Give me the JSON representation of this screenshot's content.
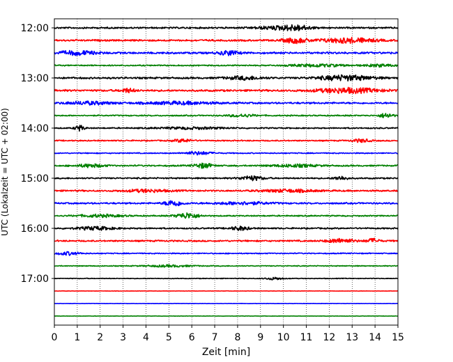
{
  "chart_data": {
    "type": "line",
    "xlabel": "Zeit  [min]",
    "ylabel": "UTC (Lokalzeit = UTC + 02:00)",
    "xlim": [
      0,
      15
    ],
    "x_ticks": [
      "0",
      "1",
      "2",
      "3",
      "4",
      "5",
      "6",
      "7",
      "8",
      "9",
      "10",
      "11",
      "12",
      "13",
      "14",
      "15"
    ],
    "y_ticks": [
      "12:00",
      "13:00",
      "14:00",
      "15:00",
      "16:00",
      "17:00"
    ],
    "grid": "vertical dotted lines at each minute",
    "trace_interval_min": 15,
    "color_cycle": [
      "#000000",
      "#ff0000",
      "#0000ff",
      "#008000"
    ],
    "traces": [
      {
        "start": "12:00",
        "amp": 0.45,
        "events": [
          [
            9.7,
            0.9,
            1.0
          ],
          [
            10.6,
            1.4,
            0.6
          ]
        ]
      },
      {
        "start": "12:15",
        "amp": 0.5,
        "events": [
          [
            10.5,
            1.6,
            0.5
          ],
          [
            12.8,
            1.5,
            1.2
          ]
        ]
      },
      {
        "start": "12:30",
        "amp": 0.55,
        "events": [
          [
            1.0,
            1.2,
            0.8
          ],
          [
            7.6,
            1.4,
            0.4
          ]
        ]
      },
      {
        "start": "12:45",
        "amp": 0.35,
        "events": [
          [
            11.5,
            0.8,
            1.2
          ],
          [
            14.2,
            0.8,
            0.6
          ]
        ]
      },
      {
        "start": "13:00",
        "amp": 0.5,
        "events": [
          [
            8.3,
            1.0,
            0.8
          ],
          [
            12.7,
            1.6,
            1.2
          ]
        ]
      },
      {
        "start": "13:15",
        "amp": 0.55,
        "events": [
          [
            3.2,
            1.2,
            0.3
          ],
          [
            12.8,
            1.5,
            1.4
          ]
        ]
      },
      {
        "start": "13:30",
        "amp": 0.5,
        "events": [
          [
            1.5,
            0.9,
            1.0
          ],
          [
            5.5,
            0.8,
            1.5
          ]
        ]
      },
      {
        "start": "13:45",
        "amp": 0.35,
        "events": [
          [
            8.2,
            0.8,
            0.6
          ],
          [
            14.5,
            1.5,
            0.3
          ]
        ]
      },
      {
        "start": "14:00",
        "amp": 0.35,
        "events": [
          [
            1.1,
            1.8,
            0.2
          ],
          [
            6.0,
            0.6,
            1.5
          ]
        ]
      },
      {
        "start": "14:15",
        "amp": 0.35,
        "events": [
          [
            5.6,
            1.0,
            0.4
          ],
          [
            13.4,
            1.0,
            0.4
          ]
        ]
      },
      {
        "start": "14:30",
        "amp": 0.3,
        "events": [
          [
            6.3,
            1.0,
            0.6
          ]
        ]
      },
      {
        "start": "14:45",
        "amp": 0.4,
        "events": [
          [
            1.6,
            1.0,
            0.6
          ],
          [
            6.5,
            1.5,
            0.4
          ],
          [
            10.5,
            0.8,
            1.0
          ]
        ]
      },
      {
        "start": "15:00",
        "amp": 0.4,
        "events": [
          [
            8.6,
            1.4,
            0.5
          ],
          [
            12.5,
            1.2,
            0.3
          ]
        ]
      },
      {
        "start": "15:15",
        "amp": 0.45,
        "events": [
          [
            4.0,
            0.8,
            1.0
          ],
          [
            10.2,
            0.8,
            1.2
          ]
        ]
      },
      {
        "start": "15:30",
        "amp": 0.45,
        "events": [
          [
            5.2,
            1.8,
            0.4
          ],
          [
            8.2,
            0.8,
            1.2
          ]
        ]
      },
      {
        "start": "15:45",
        "amp": 0.35,
        "events": [
          [
            2.0,
            0.8,
            1.0
          ],
          [
            5.8,
            1.8,
            0.5
          ]
        ]
      },
      {
        "start": "16:00",
        "amp": 0.4,
        "events": [
          [
            1.8,
            1.0,
            0.8
          ],
          [
            8.1,
            1.2,
            0.4
          ]
        ]
      },
      {
        "start": "16:15",
        "amp": 0.45,
        "events": [
          [
            12.5,
            1.3,
            0.6
          ],
          [
            13.9,
            1.3,
            0.3
          ]
        ]
      },
      {
        "start": "16:30",
        "amp": 0.3,
        "events": [
          [
            0.6,
            1.0,
            0.5
          ]
        ]
      },
      {
        "start": "16:45",
        "amp": 0.25,
        "events": [
          [
            5.0,
            0.6,
            1.0
          ]
        ]
      },
      {
        "start": "17:00",
        "amp": 0.2,
        "events": [
          [
            9.6,
            0.8,
            0.4
          ]
        ]
      },
      {
        "start": "17:15",
        "amp": 0.1,
        "events": []
      },
      {
        "start": "17:30",
        "amp": 0.1,
        "events": []
      },
      {
        "start": "17:45",
        "amp": 0.1,
        "events": []
      }
    ]
  }
}
